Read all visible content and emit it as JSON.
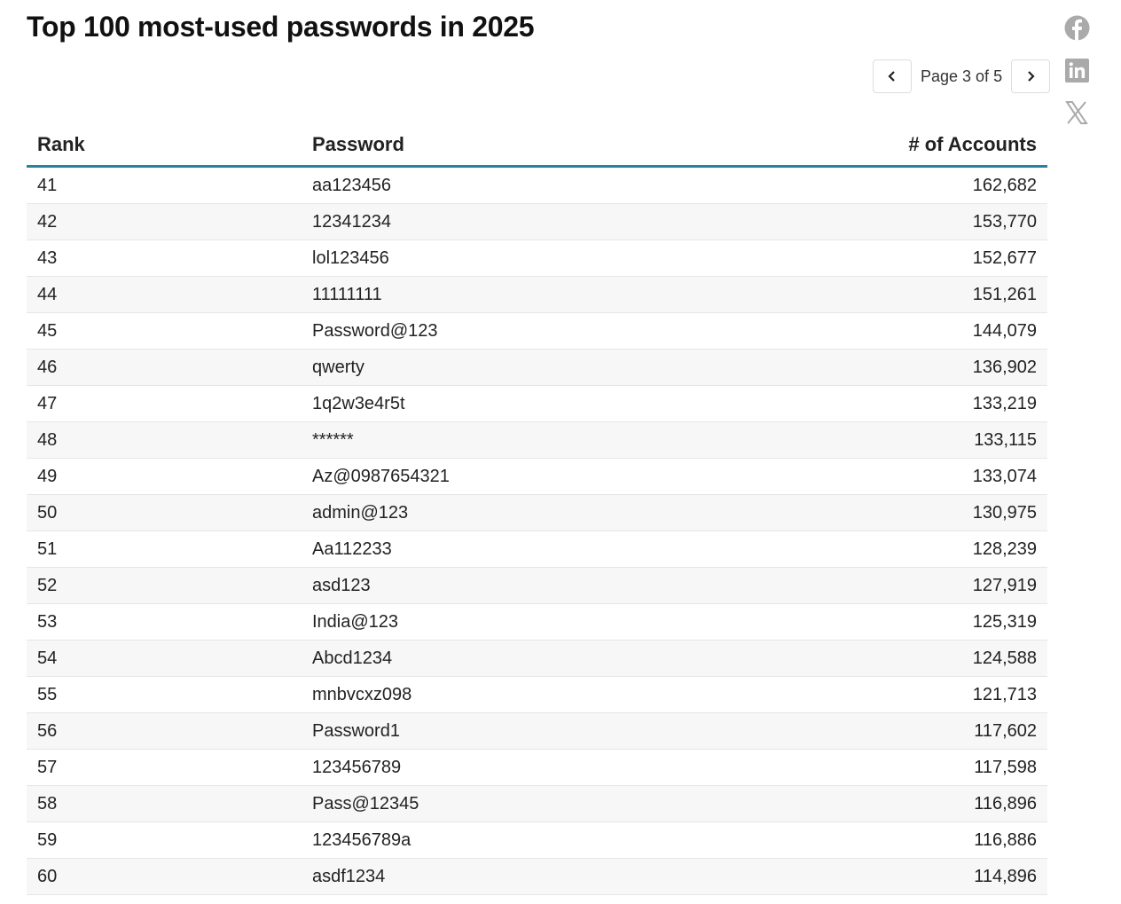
{
  "title": "Top 100 most-used passwords in 2025",
  "pagination": {
    "label": "Page 3 of 5",
    "prev_icon": "chevron-left-icon",
    "next_icon": "chevron-right-icon"
  },
  "social": [
    "facebook-icon",
    "linkedin-icon",
    "x-icon"
  ],
  "colors": {
    "header_rule": "#2a7fa3",
    "stripe": "#f7f7f7",
    "social_gray": "#aaaaaa"
  },
  "table": {
    "headers": [
      "Rank",
      "Password",
      "# of Accounts"
    ],
    "rows": [
      [
        "41",
        "aa123456",
        "162,682"
      ],
      [
        "42",
        "12341234",
        "153,770"
      ],
      [
        "43",
        "lol123456",
        "152,677"
      ],
      [
        "44",
        "11111111",
        "151,261"
      ],
      [
        "45",
        "Password@123",
        "144,079"
      ],
      [
        "46",
        "qwerty",
        "136,902"
      ],
      [
        "47",
        "1q2w3e4r5t",
        "133,219"
      ],
      [
        "48",
        "******",
        "133,115"
      ],
      [
        "49",
        "Az@0987654321",
        "133,074"
      ],
      [
        "50",
        "admin@123",
        "130,975"
      ],
      [
        "51",
        "Aa112233",
        "128,239"
      ],
      [
        "52",
        "asd123",
        "127,919"
      ],
      [
        "53",
        "India@123",
        "125,319"
      ],
      [
        "54",
        "Abcd1234",
        "124,588"
      ],
      [
        "55",
        "mnbvcxz098",
        "121,713"
      ],
      [
        "56",
        "Password1",
        "117,602"
      ],
      [
        "57",
        "123456789",
        "117,598"
      ],
      [
        "58",
        "Pass@12345",
        "116,896"
      ],
      [
        "59",
        "123456789a",
        "116,886"
      ],
      [
        "60",
        "asdf1234",
        "114,896"
      ]
    ]
  }
}
